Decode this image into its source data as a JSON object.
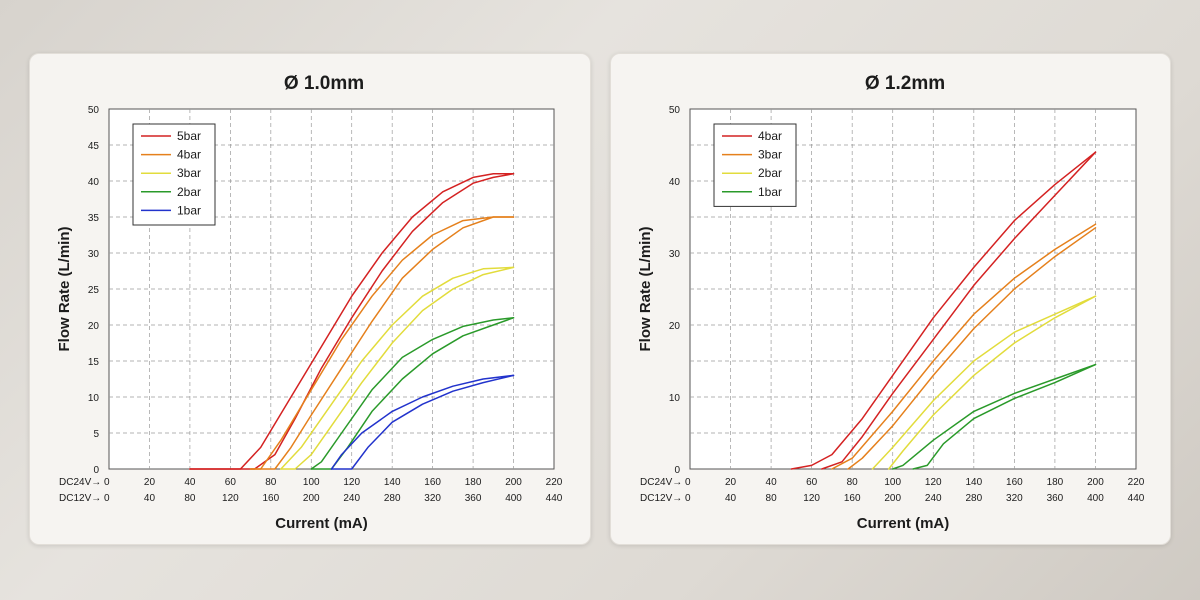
{
  "chart_data": [
    {
      "type": "line",
      "title": "Ø 1.0mm",
      "xlabel": "Current (mA)",
      "ylabel": "Flow Rate (L/min)",
      "xlim": [
        0,
        220
      ],
      "ylim": [
        0,
        50
      ],
      "yticks": [
        "0",
        "5",
        "10",
        "15",
        "20",
        "25",
        "30",
        "35",
        "40",
        "45",
        "50"
      ],
      "x_rows": [
        {
          "label": "DC24V→ 0",
          "ticks": [
            "20",
            "40",
            "60",
            "80",
            "100",
            "120",
            "140",
            "160",
            "180",
            "200",
            "220"
          ]
        },
        {
          "label": "DC12V→ 0",
          "ticks": [
            "40",
            "80",
            "120",
            "160",
            "200",
            "240",
            "280",
            "320",
            "360",
            "400",
            "440"
          ]
        }
      ],
      "legend": {
        "position": "top-left"
      },
      "series": [
        {
          "name": "5bar",
          "color": "#d42222",
          "up": [
            [
              40,
              0
            ],
            [
              65,
              0
            ],
            [
              75,
              3
            ],
            [
              90,
              10
            ],
            [
              105,
              17
            ],
            [
              120,
              24
            ],
            [
              135,
              30
            ],
            [
              150,
              35
            ],
            [
              165,
              38.5
            ],
            [
              180,
              40.5
            ],
            [
              190,
              41
            ],
            [
              200,
              41
            ]
          ],
          "down": [
            [
              200,
              41
            ],
            [
              190,
              40.5
            ],
            [
              180,
              39.7
            ],
            [
              165,
              37
            ],
            [
              150,
              33
            ],
            [
              135,
              27.5
            ],
            [
              120,
              21
            ],
            [
              105,
              14
            ],
            [
              92,
              7
            ],
            [
              82,
              2
            ],
            [
              72,
              0
            ],
            [
              40,
              0
            ]
          ]
        },
        {
          "name": "4bar",
          "color": "#e5801c",
          "up": [
            [
              70,
              0
            ],
            [
              75,
              0
            ],
            [
              85,
              4
            ],
            [
              100,
              11
            ],
            [
              115,
              18
            ],
            [
              130,
              24
            ],
            [
              145,
              29
            ],
            [
              160,
              32.5
            ],
            [
              175,
              34.5
            ],
            [
              190,
              35
            ],
            [
              200,
              35
            ]
          ],
          "down": [
            [
              200,
              35
            ],
            [
              190,
              35
            ],
            [
              175,
              33.5
            ],
            [
              160,
              30.5
            ],
            [
              145,
              26.5
            ],
            [
              130,
              20.5
            ],
            [
              115,
              14
            ],
            [
              100,
              7.5
            ],
            [
              90,
              3
            ],
            [
              82,
              0
            ],
            [
              70,
              0
            ]
          ]
        },
        {
          "name": "3bar",
          "color": "#e2dc3c",
          "up": [
            [
              85,
              0
            ],
            [
              95,
              3
            ],
            [
              110,
              9
            ],
            [
              125,
              15
            ],
            [
              140,
              20
            ],
            [
              155,
              24
            ],
            [
              170,
              26.5
            ],
            [
              185,
              27.8
            ],
            [
              200,
              28
            ]
          ],
          "down": [
            [
              200,
              28
            ],
            [
              185,
              27
            ],
            [
              170,
              25
            ],
            [
              155,
              22
            ],
            [
              140,
              17.5
            ],
            [
              125,
              12
            ],
            [
              110,
              6
            ],
            [
              100,
              2
            ],
            [
              92,
              0
            ],
            [
              85,
              0
            ]
          ]
        },
        {
          "name": "2bar",
          "color": "#2a9a2a",
          "up": [
            [
              100,
              0
            ],
            [
              105,
              1
            ],
            [
              115,
              5
            ],
            [
              130,
              11
            ],
            [
              145,
              15.5
            ],
            [
              160,
              18
            ],
            [
              175,
              19.8
            ],
            [
              190,
              20.7
            ],
            [
              200,
              21
            ]
          ],
          "down": [
            [
              200,
              21
            ],
            [
              190,
              20
            ],
            [
              175,
              18.5
            ],
            [
              160,
              16
            ],
            [
              145,
              12.5
            ],
            [
              130,
              8
            ],
            [
              118,
              3
            ],
            [
              110,
              0
            ],
            [
              100,
              0
            ]
          ]
        },
        {
          "name": "1bar",
          "color": "#2233cc",
          "up": [
            [
              110,
              0
            ],
            [
              115,
              2
            ],
            [
              125,
              5
            ],
            [
              140,
              8
            ],
            [
              155,
              10
            ],
            [
              170,
              11.5
            ],
            [
              185,
              12.5
            ],
            [
              200,
              13
            ]
          ],
          "down": [
            [
              200,
              13
            ],
            [
              185,
              12
            ],
            [
              170,
              10.8
            ],
            [
              155,
              9
            ],
            [
              140,
              6.5
            ],
            [
              128,
              3
            ],
            [
              120,
              0
            ],
            [
              110,
              0
            ]
          ]
        }
      ]
    },
    {
      "type": "line",
      "title": "Ø 1.2mm",
      "xlabel": "Current (mA)",
      "ylabel": "Flow Rate (L/min)",
      "xlim": [
        0,
        220
      ],
      "ylim": [
        0,
        50
      ],
      "yticks": [
        "0",
        "",
        "10",
        "",
        "20",
        "",
        "30",
        "",
        "40",
        "",
        "50"
      ],
      "x_rows": [
        {
          "label": "DC24V→ 0",
          "ticks": [
            "20",
            "40",
            "60",
            "80",
            "100",
            "120",
            "140",
            "160",
            "180",
            "200",
            "220"
          ]
        },
        {
          "label": "DC12V→ 0",
          "ticks": [
            "40",
            "80",
            "120",
            "160",
            "200",
            "240",
            "280",
            "320",
            "360",
            "400",
            "440"
          ]
        }
      ],
      "legend": {
        "position": "top-left"
      },
      "series": [
        {
          "name": "4bar",
          "color": "#d42222",
          "up": [
            [
              50,
              0
            ],
            [
              60,
              0.5
            ],
            [
              70,
              2
            ],
            [
              85,
              7
            ],
            [
              100,
              13
            ],
            [
              120,
              21
            ],
            [
              140,
              28
            ],
            [
              160,
              34.5
            ],
            [
              180,
              39.5
            ],
            [
              200,
              44
            ]
          ],
          "down": [
            [
              200,
              44
            ],
            [
              180,
              38
            ],
            [
              160,
              32
            ],
            [
              140,
              25.5
            ],
            [
              120,
              18
            ],
            [
              100,
              10.5
            ],
            [
              85,
              4.5
            ],
            [
              75,
              1
            ],
            [
              65,
              0
            ]
          ]
        },
        {
          "name": "3bar",
          "color": "#e5801c",
          "up": [
            [
              70,
              0
            ],
            [
              80,
              1.5
            ],
            [
              100,
              8
            ],
            [
              120,
              15
            ],
            [
              140,
              21.5
            ],
            [
              160,
              26.5
            ],
            [
              180,
              30.5
            ],
            [
              200,
              34
            ]
          ],
          "down": [
            [
              200,
              33.5
            ],
            [
              180,
              29.5
            ],
            [
              160,
              25
            ],
            [
              140,
              19.5
            ],
            [
              120,
              13
            ],
            [
              100,
              6
            ],
            [
              85,
              1.5
            ],
            [
              78,
              0
            ]
          ]
        },
        {
          "name": "2bar",
          "color": "#e2dc3c",
          "up": [
            [
              90,
              0
            ],
            [
              100,
              3
            ],
            [
              120,
              9.5
            ],
            [
              140,
              15
            ],
            [
              160,
              19
            ],
            [
              180,
              21.5
            ],
            [
              200,
              24
            ]
          ],
          "down": [
            [
              200,
              24
            ],
            [
              180,
              21
            ],
            [
              160,
              17.5
            ],
            [
              140,
              13
            ],
            [
              120,
              7.5
            ],
            [
              105,
              2.5
            ],
            [
              98,
              0
            ]
          ]
        },
        {
          "name": "1bar",
          "color": "#2a9a2a",
          "up": [
            [
              100,
              0
            ],
            [
              105,
              0.5
            ],
            [
              120,
              4
            ],
            [
              140,
              8
            ],
            [
              160,
              10.5
            ],
            [
              180,
              12.5
            ],
            [
              200,
              14.5
            ]
          ],
          "down": [
            [
              200,
              14.5
            ],
            [
              180,
              12
            ],
            [
              160,
              9.8
            ],
            [
              140,
              7
            ],
            [
              125,
              3.5
            ],
            [
              117,
              0.5
            ],
            [
              110,
              0
            ]
          ]
        }
      ]
    }
  ]
}
